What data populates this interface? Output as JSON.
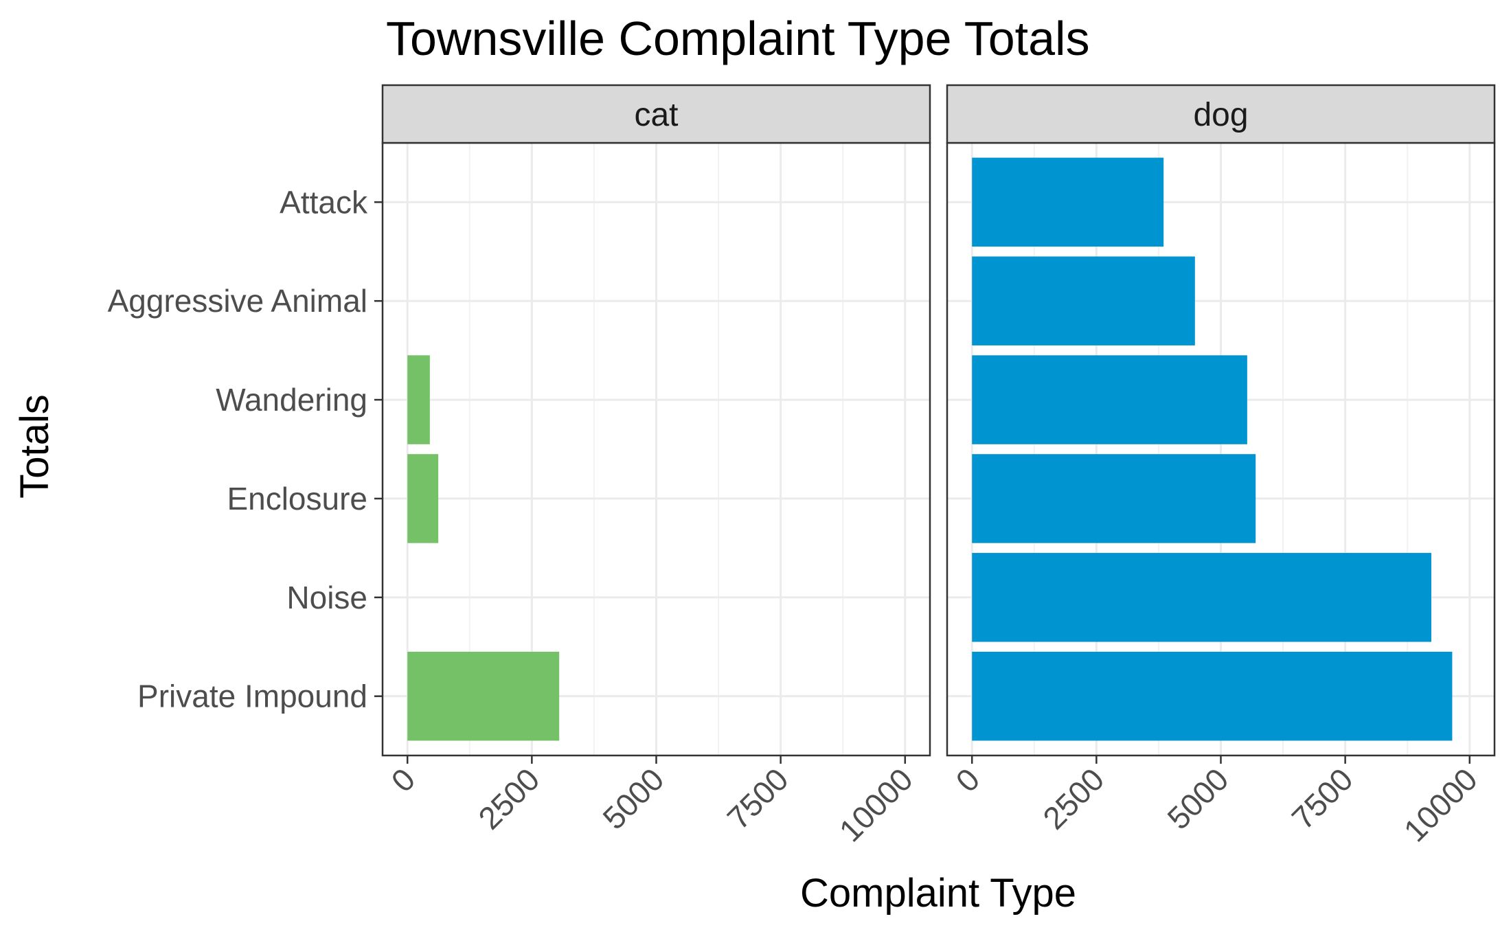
{
  "chart_data": {
    "type": "bar",
    "orientation": "horizontal",
    "title": "Townsville Complaint Type Totals",
    "xlabel": "Complaint Type",
    "ylabel": "Totals",
    "categories": [
      "Attack",
      "Aggressive Animal",
      "Wandering",
      "Enclosure",
      "Noise",
      "Private Impound"
    ],
    "xlim": [
      0,
      10000
    ],
    "xticks": [
      "0",
      "2500",
      "5000",
      "7500",
      "10000"
    ],
    "grid": true,
    "panels": [
      {
        "name": "cat",
        "color": "#74c167",
        "values": [
          0,
          0,
          450,
          620,
          0,
          3050
        ]
      },
      {
        "name": "dog",
        "color": "#0094d1",
        "values": [
          3850,
          4480,
          5530,
          5700,
          9230,
          9650
        ]
      }
    ]
  }
}
